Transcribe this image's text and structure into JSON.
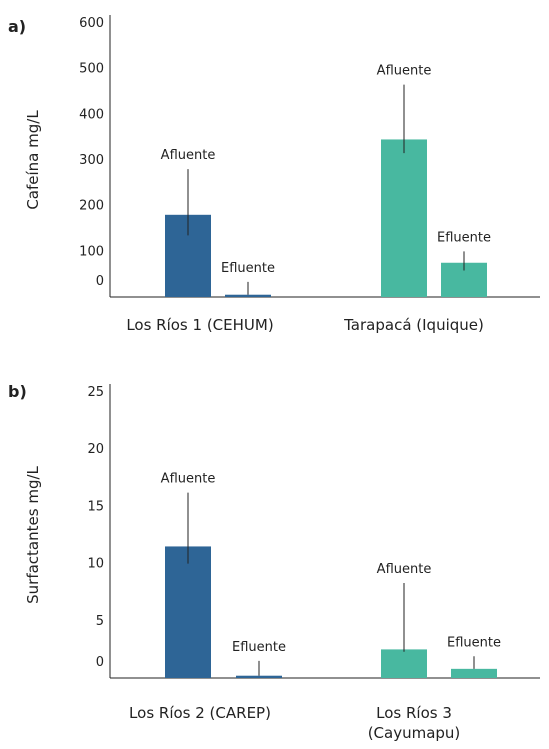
{
  "colors": {
    "primary": "#2e6596",
    "secondary": "#48b8a0"
  },
  "chart_data": [
    {
      "type": "bar",
      "panel_label": "a)",
      "ylabel": "Cafeína mg/L",
      "ylim": [
        0,
        600
      ],
      "yticks": [
        "0",
        "100",
        "200",
        "300",
        "400",
        "500",
        "600"
      ],
      "ytick_values": [
        0,
        100,
        200,
        300,
        400,
        500,
        600
      ],
      "categories": [
        "Los Ríos 1 (CEHUM)",
        "Tarapacá (Iquique)"
      ],
      "bars": [
        {
          "category": 0,
          "label": "Afluente",
          "value": 180,
          "err_low": 135,
          "err_high": 280,
          "color": "primary"
        },
        {
          "category": 0,
          "label": "Efluente",
          "value": 5,
          "err_low": 5,
          "err_high": 33,
          "color": "primary"
        },
        {
          "category": 1,
          "label": "Afluente",
          "value": 345,
          "err_low": 315,
          "err_high": 465,
          "color": "secondary"
        },
        {
          "category": 1,
          "label": "Efluente",
          "value": 75,
          "err_low": 58,
          "err_high": 100,
          "color": "secondary"
        }
      ]
    },
    {
      "type": "bar",
      "panel_label": "b)",
      "ylabel": "Surfactantes mg/L",
      "ylim": [
        0,
        25
      ],
      "yticks": [
        "0",
        "5",
        "10",
        "15",
        "20",
        "25"
      ],
      "ytick_values": [
        0,
        5,
        10,
        15,
        20,
        25
      ],
      "categories": [
        "Los Ríos 2 (CAREP)",
        "Los Ríos 3\n(Cayumapu)"
      ],
      "bars": [
        {
          "category": 0,
          "label": "Afluente",
          "value": 11.5,
          "err_low": 10,
          "err_high": 16.2,
          "color": "primary"
        },
        {
          "category": 0,
          "label": "Efluente",
          "value": 0.2,
          "err_low": 0.2,
          "err_high": 1.5,
          "color": "primary"
        },
        {
          "category": 1,
          "label": "Afluente",
          "value": 2.5,
          "err_low": 2.3,
          "err_high": 8.3,
          "color": "secondary"
        },
        {
          "category": 1,
          "label": "Efluente",
          "value": 0.8,
          "err_low": 0.8,
          "err_high": 1.9,
          "color": "secondary"
        }
      ]
    }
  ]
}
